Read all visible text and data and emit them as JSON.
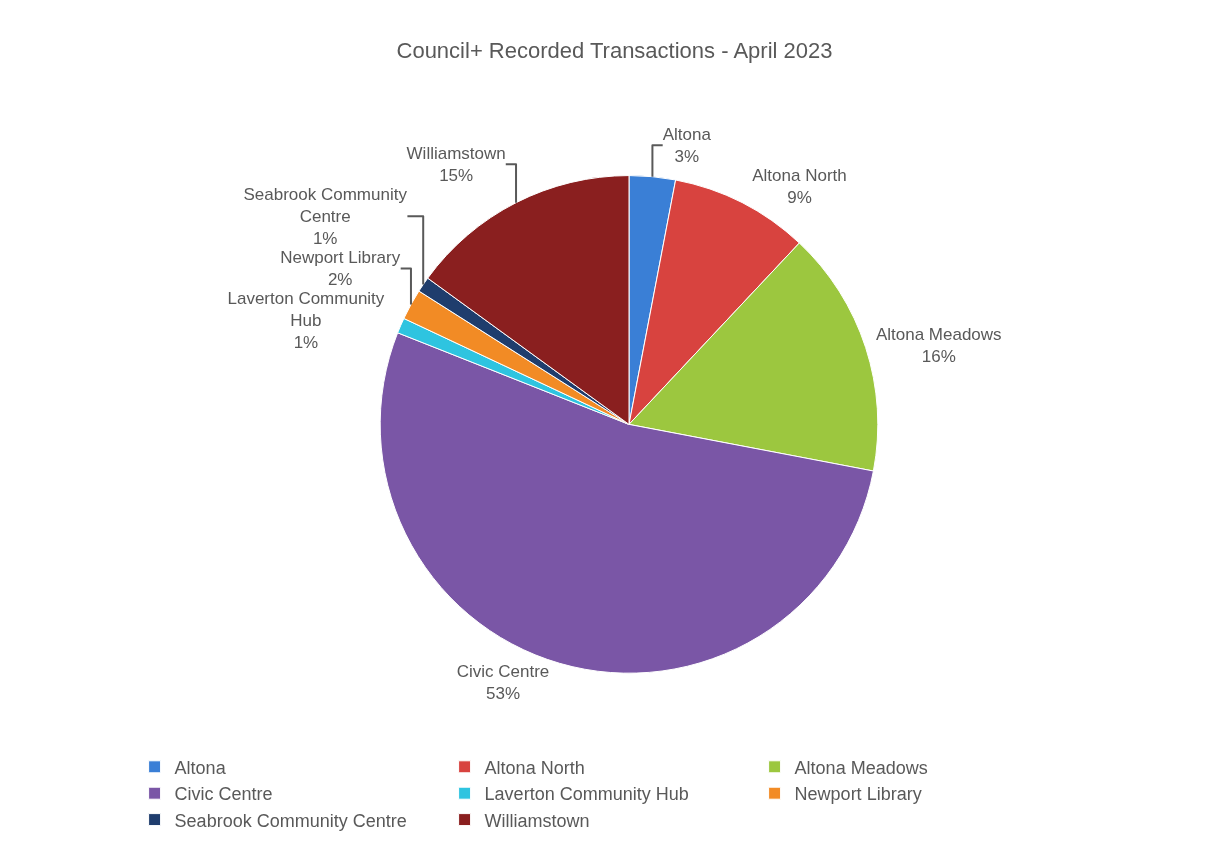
{
  "chart_data": {
    "type": "pie",
    "title": "Council+ Recorded Transactions - April 2023",
    "categories": [
      "Altona",
      "Altona North",
      "Altona Meadows",
      "Civic Centre",
      "Laverton Community Hub",
      "Newport Library",
      "Seabrook Community Centre",
      "Williamstown"
    ],
    "values": [
      3,
      9,
      16,
      53,
      1,
      2,
      1,
      15
    ],
    "value_labels": [
      "3%",
      "9%",
      "16%",
      "53%",
      "1%",
      "2%",
      "1%",
      "15%"
    ],
    "colors": [
      "#3a7fd6",
      "#d8433f",
      "#9cc73f",
      "#7a56a6",
      "#2ec4e0",
      "#f28b25",
      "#1f3d6d",
      "#8a1f1f"
    ],
    "legend": "bottom"
  }
}
